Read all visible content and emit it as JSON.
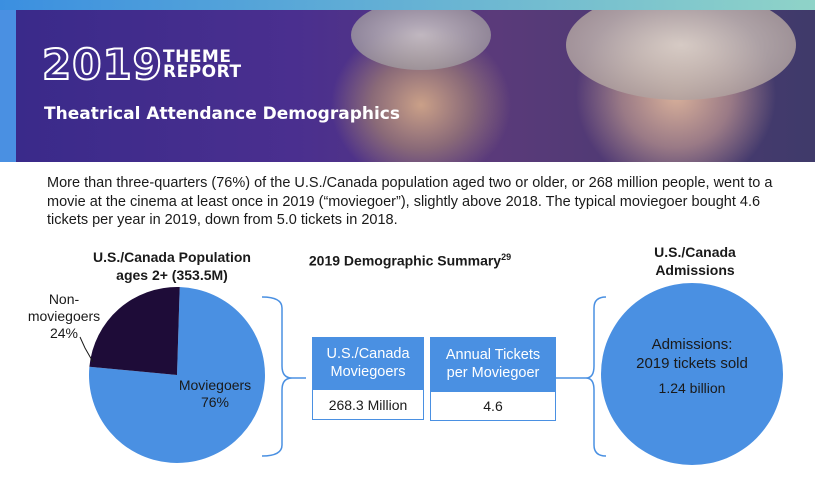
{
  "banner": {
    "year": "2019",
    "theme_line1": "THEME",
    "theme_line2": "REPORT",
    "subtitle": "Theatrical Attendance Demographics"
  },
  "intro": "More than three-quarters (76%) of the U.S./Canada population aged two or older, or 268 million people, went to a movie at the cinema at least once in 2019 (“moviegoer”), slightly above 2018. The typical moviegoer bought 4.6 tickets per year in 2019, down from 5.0 tickets in 2018.",
  "population": {
    "heading_line1": "U.S./Canada Population",
    "heading_line2": "ages 2+ (353.5M)",
    "moviegoers_label": "Moviegoers",
    "moviegoers_pct": "76%",
    "non_line1": "Non-",
    "non_line2": "moviegoers",
    "non_pct": "24%"
  },
  "summary": {
    "heading": "2019 Demographic Summary",
    "footnote": "29",
    "moviegoers_title_line1": "U.S./Canada",
    "moviegoers_title_line2": "Moviegoers",
    "moviegoers_value": "268.3 Million",
    "tickets_title_line1": "Annual Tickets",
    "tickets_title_line2": "per Moviegoer",
    "tickets_value": "4.6"
  },
  "admissions": {
    "heading_line1": "U.S./Canada",
    "heading_line2": "Admissions",
    "label_line1": "Admissions:",
    "label_line2": "2019 tickets sold",
    "value": "1.24 billion"
  },
  "colors": {
    "accent_blue": "#4a90e2",
    "dark_purple": "#1e0c38"
  },
  "chart_data": {
    "type": "pie",
    "title": "U.S./Canada Population ages 2+ (353.5M)",
    "categories": [
      "Moviegoers",
      "Non-moviegoers"
    ],
    "values": [
      76,
      24
    ],
    "colors": [
      "#4a90e2",
      "#1e0c38"
    ]
  }
}
